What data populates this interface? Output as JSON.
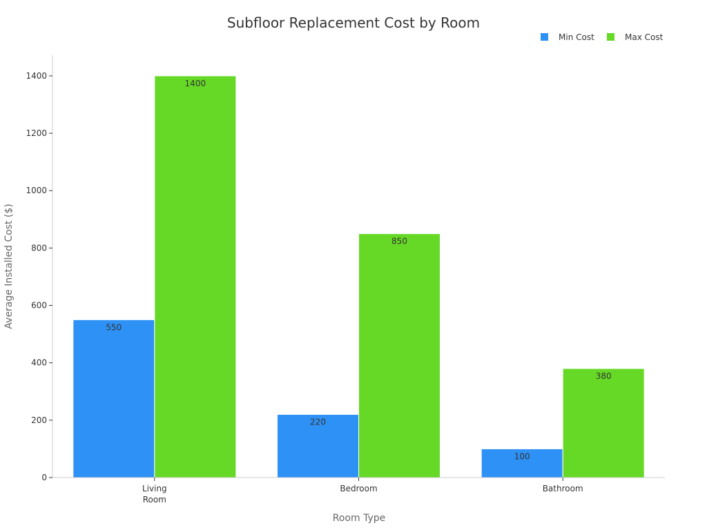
{
  "chart_data": {
    "type": "bar",
    "title": "Subfloor Replacement Cost by Room",
    "xlabel": "Room Type",
    "ylabel": "Average Installed Cost ($)",
    "categories": [
      [
        "Living",
        "Room"
      ],
      [
        "Bedroom"
      ],
      [
        "Bathroom"
      ]
    ],
    "series": [
      {
        "name": "Min Cost",
        "values": [
          550,
          220,
          100
        ],
        "color": "#2e91f5"
      },
      {
        "name": "Max Cost",
        "values": [
          1400,
          850,
          380
        ],
        "color": "#66d926"
      }
    ],
    "ylim": [
      0,
      1472
    ],
    "yticks": [
      0,
      200,
      400,
      600,
      800,
      1000,
      1200,
      1400
    ],
    "grid": false,
    "legend_position": "top-right"
  }
}
